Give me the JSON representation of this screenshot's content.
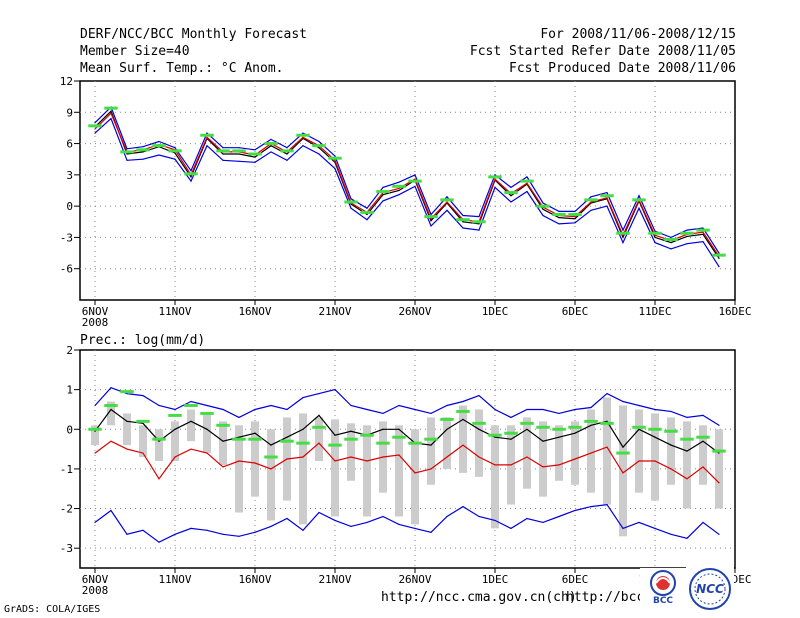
{
  "header": {
    "title": "DERF/NCC/BCC Monthly Forecast",
    "member_size": "Member Size=40",
    "variable": "Mean Surf. Temp.: °C Anom.",
    "period": "For 2008/11/06-2008/12/15",
    "started": "Fcst Started Refer Date 2008/11/05",
    "produced": "Fcst Produced Date 2008/11/06"
  },
  "footer": {
    "grads": "GrADS: COLA/IGES",
    "url1": "http://ncc.cma.gov.cn(ch)",
    "url2": "http://bcc.c"
  },
  "logos": {
    "bcc": "BCC",
    "ncc": "NCC"
  },
  "colors": {
    "max_min": "#0000dd",
    "mean": "#000000",
    "red": "#dd0000",
    "obs": "#44dd44",
    "box": "#cccccc"
  },
  "chart_data": [
    {
      "type": "line",
      "title": "Mean Surf. Temp.: °C Anom.",
      "x_tick_labels": [
        "6NOV",
        "11NOV",
        "16NOV",
        "21NOV",
        "26NOV",
        "1DEC",
        "6DEC",
        "11DEC",
        "16DEC"
      ],
      "x_tick_days": [
        0,
        5,
        10,
        15,
        20,
        25,
        30,
        35,
        40
      ],
      "year_label": "2008",
      "ylim": [
        -9,
        12
      ],
      "y_ticks": [
        12,
        9,
        6,
        3,
        0,
        -3,
        -6
      ],
      "days": [
        0,
        1,
        2,
        3,
        4,
        5,
        6,
        7,
        8,
        9,
        10,
        11,
        12,
        13,
        14,
        15,
        16,
        17,
        18,
        19,
        20,
        21,
        22,
        23,
        24,
        25,
        26,
        27,
        28,
        29,
        30,
        31,
        32,
        33,
        34,
        35,
        36,
        37,
        38,
        39
      ],
      "series": [
        {
          "name": "mean",
          "values": [
            7.6,
            9.1,
            5.0,
            5.2,
            5.7,
            5.1,
            2.8,
            6.5,
            5.0,
            5.0,
            4.7,
            5.8,
            5.0,
            6.5,
            5.6,
            4.2,
            0.2,
            -0.8,
            1.1,
            1.5,
            2.5,
            -1.4,
            0.3,
            -1.5,
            -1.7,
            2.5,
            1.0,
            2.1,
            -0.3,
            -1.1,
            -1.2,
            0.3,
            0.7,
            -3.0,
            0.5,
            -3.0,
            -3.5,
            -2.9,
            -2.7,
            -5.0
          ]
        },
        {
          "name": "upper",
          "values": [
            8.0,
            9.5,
            5.5,
            5.7,
            6.2,
            5.6,
            3.4,
            7.0,
            5.6,
            5.6,
            5.4,
            6.4,
            5.6,
            7.0,
            6.2,
            4.8,
            0.7,
            -0.2,
            1.8,
            2.3,
            3.0,
            -0.8,
            0.9,
            -0.9,
            -1.0,
            3.0,
            1.8,
            2.8,
            0.3,
            -0.5,
            -0.5,
            0.9,
            1.3,
            -2.3,
            1.0,
            -2.4,
            -3.0,
            -2.3,
            -2.1,
            -4.5
          ]
        },
        {
          "name": "lower",
          "values": [
            7.0,
            8.4,
            4.4,
            4.5,
            4.9,
            4.5,
            2.4,
            5.8,
            4.4,
            4.3,
            4.2,
            5.2,
            4.4,
            5.8,
            5.0,
            3.6,
            -0.2,
            -1.3,
            0.5,
            1.1,
            1.9,
            -1.9,
            -0.4,
            -2.1,
            -2.3,
            1.8,
            0.4,
            1.4,
            -0.9,
            -1.7,
            -1.6,
            -0.4,
            0.0,
            -3.5,
            -0.2,
            -3.5,
            -4.1,
            -3.6,
            -3.4,
            -5.8
          ]
        },
        {
          "name": "red",
          "values": [
            7.4,
            8.9,
            5.2,
            5.4,
            5.9,
            5.4,
            3.0,
            6.6,
            5.2,
            5.2,
            4.9,
            6.0,
            5.2,
            6.6,
            5.8,
            4.4,
            0.3,
            -0.6,
            1.3,
            1.7,
            2.6,
            -1.2,
            0.4,
            -1.3,
            -1.5,
            2.6,
            1.2,
            2.2,
            -0.1,
            -0.9,
            -1.0,
            0.4,
            0.8,
            -2.8,
            0.6,
            -2.8,
            -3.3,
            -2.7,
            -2.5,
            -4.8
          ]
        }
      ],
      "obs": [
        7.7,
        9.4,
        5.2,
        5.4,
        5.8,
        5.3,
        3.1,
        6.8,
        5.3,
        5.3,
        5.0,
        6.0,
        5.3,
        6.8,
        5.8,
        4.6,
        0.4,
        -0.6,
        1.4,
        1.9,
        2.4,
        -1.0,
        0.6,
        -1.3,
        -1.5,
        2.8,
        1.3,
        2.4,
        0.0,
        -0.8,
        -0.8,
        0.6,
        1.0,
        -2.6,
        0.6,
        -2.6,
        -3.2,
        -2.6,
        -2.3,
        -4.7
      ]
    },
    {
      "type": "line",
      "title": "Prec.: log(mm/d)",
      "x_tick_labels": [
        "6NOV",
        "11NOV",
        "16NOV",
        "21NOV",
        "26NOV",
        "1DEC",
        "6DEC",
        "11DEC",
        "16DEC"
      ],
      "x_tick_days": [
        0,
        5,
        10,
        15,
        20,
        25,
        30,
        35,
        40
      ],
      "year_label": "2008",
      "ylim": [
        -3.5,
        2
      ],
      "y_ticks": [
        2,
        1,
        0,
        -1,
        -2,
        -3
      ],
      "days": [
        0,
        1,
        2,
        3,
        4,
        5,
        6,
        7,
        8,
        9,
        10,
        11,
        12,
        13,
        14,
        15,
        16,
        17,
        18,
        19,
        20,
        21,
        22,
        23,
        24,
        25,
        26,
        27,
        28,
        29,
        30,
        31,
        32,
        33,
        34,
        35,
        36,
        37,
        38,
        39
      ],
      "series": [
        {
          "name": "max",
          "values": [
            0.6,
            1.05,
            0.9,
            0.85,
            0.6,
            0.5,
            0.7,
            0.6,
            0.5,
            0.3,
            0.5,
            0.6,
            0.5,
            0.8,
            0.9,
            1.0,
            0.6,
            0.5,
            0.4,
            0.6,
            0.5,
            0.4,
            0.6,
            0.7,
            0.85,
            0.5,
            0.3,
            0.5,
            0.5,
            0.4,
            0.5,
            0.55,
            0.9,
            0.7,
            0.6,
            0.5,
            0.45,
            0.3,
            0.35,
            0.1
          ]
        },
        {
          "name": "mean",
          "values": [
            -0.05,
            0.5,
            0.2,
            0.15,
            -0.3,
            0.0,
            0.2,
            0.0,
            -0.3,
            -0.2,
            -0.1,
            -0.4,
            -0.2,
            0.0,
            0.35,
            -0.15,
            -0.05,
            -0.15,
            0.0,
            0.0,
            -0.35,
            -0.4,
            0.0,
            0.25,
            0.0,
            -0.2,
            -0.25,
            0.0,
            -0.3,
            -0.2,
            -0.1,
            0.1,
            0.2,
            -0.45,
            0.0,
            -0.2,
            -0.4,
            -0.55,
            -0.3,
            -0.6
          ]
        },
        {
          "name": "red",
          "values": [
            -0.6,
            -0.3,
            -0.5,
            -0.6,
            -1.25,
            -0.7,
            -0.5,
            -0.6,
            -0.95,
            -0.8,
            -0.85,
            -1.0,
            -0.75,
            -0.7,
            -0.35,
            -0.8,
            -0.7,
            -0.8,
            -0.7,
            -0.65,
            -1.1,
            -1.0,
            -0.7,
            -0.4,
            -0.7,
            -0.9,
            -0.9,
            -0.7,
            -0.95,
            -0.9,
            -0.75,
            -0.6,
            -0.45,
            -1.1,
            -0.8,
            -0.8,
            -1.0,
            -1.25,
            -0.95,
            -1.35
          ]
        },
        {
          "name": "min",
          "values": [
            -2.35,
            -2.05,
            -2.65,
            -2.55,
            -2.85,
            -2.65,
            -2.5,
            -2.55,
            -2.65,
            -2.7,
            -2.6,
            -2.45,
            -2.25,
            -2.55,
            -2.1,
            -2.3,
            -2.45,
            -2.35,
            -2.2,
            -2.4,
            -2.5,
            -2.6,
            -2.2,
            -1.95,
            -2.2,
            -2.3,
            -2.5,
            -2.25,
            -2.35,
            -2.2,
            -2.05,
            -1.95,
            -1.9,
            -2.5,
            -2.35,
            -2.5,
            -2.65,
            -2.75,
            -2.35,
            -2.65
          ]
        }
      ],
      "obs": [
        0.0,
        0.6,
        0.95,
        0.2,
        -0.25,
        0.35,
        0.6,
        0.4,
        0.1,
        -0.25,
        -0.25,
        -0.7,
        -0.3,
        -0.35,
        0.05,
        -0.4,
        -0.25,
        -0.15,
        -0.35,
        -0.2,
        -0.35,
        -0.25,
        0.25,
        0.45,
        0.15,
        -0.15,
        -0.1,
        0.15,
        0.05,
        0.0,
        0.05,
        0.2,
        0.15,
        -0.6,
        0.05,
        0.0,
        -0.05,
        -0.25,
        -0.2,
        -0.55
      ],
      "box_top": [
        0.1,
        0.7,
        0.4,
        0.1,
        0.0,
        0.2,
        0.5,
        0.4,
        0.2,
        0.1,
        0.2,
        0.0,
        0.3,
        0.4,
        0.3,
        0.25,
        0.15,
        0.1,
        0.2,
        0.1,
        0.0,
        0.3,
        0.3,
        0.6,
        0.5,
        0.1,
        0.1,
        0.3,
        0.2,
        0.1,
        0.2,
        0.5,
        0.8,
        0.6,
        0.5,
        0.4,
        0.3,
        0.2,
        0.1,
        0.0
      ],
      "box_bottom": [
        -0.4,
        0.1,
        -0.4,
        -0.7,
        -0.8,
        -0.8,
        -0.3,
        -0.6,
        -0.9,
        -2.1,
        -1.7,
        -2.3,
        -1.8,
        -2.4,
        -0.8,
        -2.2,
        -1.3,
        -2.2,
        -1.6,
        -2.2,
        -2.4,
        -1.4,
        -1.0,
        -1.1,
        -1.2,
        -2.5,
        -1.9,
        -1.5,
        -1.7,
        -1.3,
        -1.4,
        -1.6,
        -1.9,
        -2.7,
        -1.6,
        -1.8,
        -1.4,
        -2.0,
        -1.4,
        -2.0
      ]
    }
  ]
}
